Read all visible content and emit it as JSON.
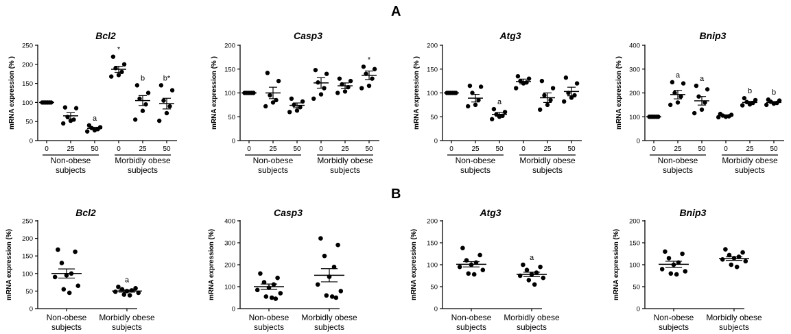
{
  "figure": {
    "label_a": "A",
    "label_b": "B"
  },
  "chart_data": [
    {
      "type": "scatter",
      "panel": "A",
      "title": "Bcl2",
      "ylabel": "mRNA expression (% )",
      "ylim": [
        0,
        250
      ],
      "yticks": [
        0,
        50,
        100,
        150,
        200,
        250
      ],
      "categories": [
        "0",
        "25",
        "50",
        "0",
        "25",
        "50"
      ],
      "groups": [
        "Non-obese subjects",
        "Morbidly obese subjects"
      ],
      "points": [
        [
          100,
          100,
          100,
          100,
          100,
          100
        ],
        [
          87,
          85,
          62,
          55,
          52,
          45
        ],
        [
          40,
          35,
          33,
          30,
          27,
          24
        ],
        [
          220,
          200,
          190,
          180,
          172,
          168
        ],
        [
          145,
          125,
          110,
          95,
          78,
          55
        ],
        [
          145,
          132,
          105,
          90,
          72,
          52
        ]
      ],
      "means": [
        100,
        65,
        32,
        187,
        105,
        97
      ],
      "sem": [
        0,
        8,
        3,
        8,
        13,
        14
      ],
      "annotations": [
        "",
        "",
        "a",
        "*",
        "b",
        "b*"
      ]
    },
    {
      "type": "scatter",
      "panel": "A",
      "title": "Casp3",
      "ylabel": "mRNA expression (% )",
      "ylim": [
        0,
        200
      ],
      "yticks": [
        0,
        50,
        100,
        150,
        200
      ],
      "categories": [
        "0",
        "25",
        "50",
        "0",
        "25",
        "50"
      ],
      "groups": [
        "Non-obese subjects",
        "Morbidly obese subjects"
      ],
      "points": [
        [
          100,
          100,
          100,
          100,
          100,
          100
        ],
        [
          142,
          125,
          95,
          85,
          80,
          72
        ],
        [
          88,
          82,
          75,
          70,
          63,
          60
        ],
        [
          148,
          140,
          122,
          110,
          97,
          88
        ],
        [
          130,
          125,
          118,
          112,
          103,
          100
        ],
        [
          155,
          150,
          140,
          130,
          115,
          110
        ]
      ],
      "means": [
        100,
        100,
        74,
        121,
        115,
        137
      ],
      "sem": [
        0,
        12,
        5,
        11,
        6,
        9
      ],
      "annotations": [
        "",
        "",
        "",
        "",
        "",
        "*"
      ]
    },
    {
      "type": "scatter",
      "panel": "A",
      "title": "Atg3",
      "ylabel": "mRNA expression (% )",
      "ylim": [
        0,
        200
      ],
      "yticks": [
        0,
        50,
        100,
        150,
        200
      ],
      "categories": [
        "0",
        "25",
        "50",
        "0",
        "25",
        "50"
      ],
      "groups": [
        "Non-obese subjects",
        "Morbidly obese subjects"
      ],
      "points": [
        [
          100,
          100,
          100,
          100,
          100,
          100
        ],
        [
          115,
          113,
          100,
          85,
          75,
          72
        ],
        [
          66,
          60,
          55,
          52,
          50,
          45
        ],
        [
          135,
          130,
          125,
          122,
          120,
          110
        ],
        [
          125,
          110,
          95,
          85,
          75,
          65
        ],
        [
          132,
          120,
          100,
          95,
          90,
          82
        ]
      ],
      "means": [
        100,
        89,
        55,
        124,
        90,
        103
      ],
      "sem": [
        0,
        8,
        4,
        5,
        10,
        9
      ],
      "annotations": [
        "",
        "",
        "a",
        "",
        "",
        ""
      ]
    },
    {
      "type": "scatter",
      "panel": "A",
      "title": "Bnip3",
      "ylabel": "mRNA expression (% )",
      "ylim": [
        0,
        400
      ],
      "yticks": [
        0,
        100,
        200,
        300,
        400
      ],
      "categories": [
        "0",
        "25",
        "50",
        "0",
        "25",
        "50"
      ],
      "groups": [
        "Non-obese subjects",
        "Morbidly obese subjects"
      ],
      "points": [
        [
          100,
          100,
          100,
          100,
          100,
          100
        ],
        [
          245,
          240,
          200,
          185,
          160,
          150
        ],
        [
          230,
          215,
          185,
          160,
          130,
          115
        ],
        [
          112,
          108,
          105,
          102,
          100,
          98
        ],
        [
          178,
          170,
          162,
          158,
          152,
          148
        ],
        [
          172,
          168,
          163,
          158,
          155,
          150
        ]
      ],
      "means": [
        100,
        193,
        167,
        105,
        160,
        160
      ],
      "sem": [
        0,
        18,
        18,
        3,
        5,
        4
      ],
      "annotations": [
        "",
        "a",
        "a",
        "",
        "b",
        "b"
      ]
    },
    {
      "type": "scatter",
      "panel": "B",
      "title": "Bcl2",
      "ylabel": "mRNA expression (%)",
      "ylim": [
        0,
        250
      ],
      "yticks": [
        0,
        50,
        100,
        150,
        200,
        250
      ],
      "categories": [
        "Non-obese subjects",
        "Morbidly obese subjects"
      ],
      "points": [
        [
          168,
          162,
          130,
          100,
          95,
          90,
          65,
          55,
          45
        ],
        [
          62,
          58,
          55,
          52,
          50,
          48,
          45,
          40,
          38
        ]
      ],
      "means": [
        100,
        50
      ],
      "sem": [
        13,
        3
      ],
      "annotations": [
        "",
        "a"
      ]
    },
    {
      "type": "scatter",
      "panel": "B",
      "title": "Casp3",
      "ylabel": "mRNA expression (%)",
      "ylim": [
        0,
        400
      ],
      "yticks": [
        0,
        100,
        200,
        300,
        400
      ],
      "categories": [
        "Non-obese subjects",
        "Morbidly obese subjects"
      ],
      "points": [
        [
          160,
          140,
          120,
          110,
          95,
          85,
          70,
          55,
          50,
          45
        ],
        [
          320,
          290,
          240,
          190,
          145,
          110,
          80,
          60,
          55,
          50
        ]
      ],
      "means": [
        100,
        152
      ],
      "sem": [
        12,
        30
      ],
      "annotations": [
        "",
        ""
      ]
    },
    {
      "type": "scatter",
      "panel": "B",
      "title": "Atg3",
      "ylabel": "mRNA expression (%)",
      "ylim": [
        0,
        200
      ],
      "yticks": [
        0,
        50,
        100,
        150,
        200
      ],
      "categories": [
        "Non-obese subjects",
        "Morbidly obese subjects"
      ],
      "points": [
        [
          138,
          122,
          110,
          105,
          100,
          95,
          88,
          80,
          78
        ],
        [
          100,
          95,
          88,
          82,
          78,
          75,
          70,
          65,
          55
        ]
      ],
      "means": [
        101,
        78
      ],
      "sem": [
        6,
        5
      ],
      "annotations": [
        "",
        "a"
      ]
    },
    {
      "type": "scatter",
      "panel": "B",
      "title": "Bnip3",
      "ylabel": "mRNA expression (%)",
      "ylim": [
        0,
        200
      ],
      "yticks": [
        0,
        50,
        100,
        150,
        200
      ],
      "categories": [
        "Non-obese subjects",
        "Morbidly obese subjects"
      ],
      "points": [
        [
          130,
          125,
          115,
          105,
          100,
          90,
          85,
          80,
          78
        ],
        [
          135,
          128,
          122,
          118,
          115,
          112,
          108,
          100,
          95
        ]
      ],
      "means": [
        101,
        114
      ],
      "sem": [
        7,
        4
      ],
      "annotations": [
        "",
        ""
      ]
    }
  ]
}
